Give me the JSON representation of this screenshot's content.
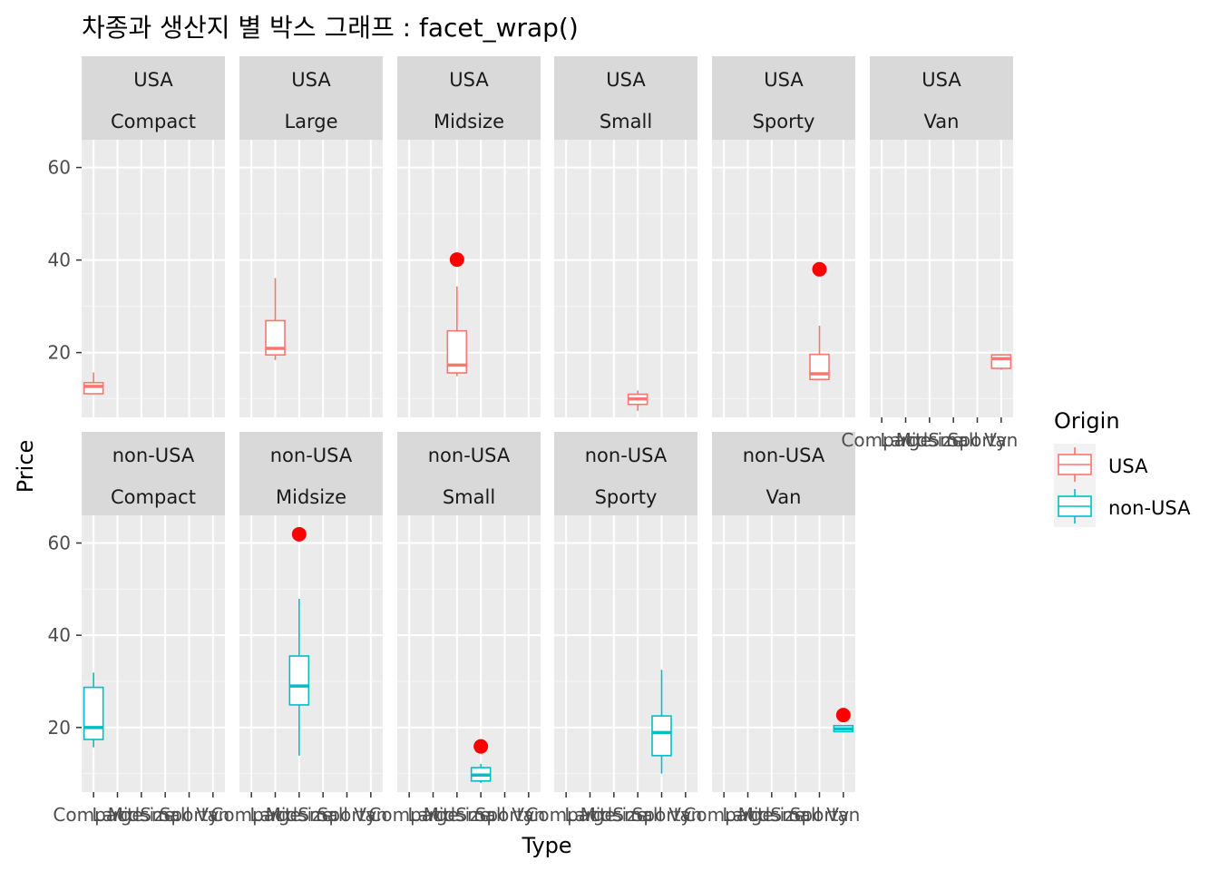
{
  "chart_data": {
    "type": "box",
    "title": "차종과 생산지 별 박스 그래프 : facet_wrap()",
    "xlabel": "Type",
    "ylabel": "Price",
    "y_ticks": [
      20,
      40,
      60
    ],
    "ylim": [
      6,
      66
    ],
    "categories": [
      "Compact",
      "Large",
      "Midsize",
      "Small",
      "Sporty",
      "Van"
    ],
    "legend": {
      "title": "Origin",
      "entries": [
        {
          "name": "USA",
          "color": "#F8766D"
        },
        {
          "name": "non-USA",
          "color": "#00BFC4"
        }
      ]
    },
    "outlier_color": "#FF0000",
    "panels": [
      {
        "origin": "USA",
        "type": "Compact",
        "q1": 11.1,
        "median": 12.7,
        "q3": 13.5,
        "lower": 11.1,
        "upper": 15.7,
        "outliers": []
      },
      {
        "origin": "USA",
        "type": "Large",
        "q1": 19.5,
        "median": 20.9,
        "q3": 26.9,
        "lower": 18.4,
        "upper": 36.1,
        "outliers": []
      },
      {
        "origin": "USA",
        "type": "Midsize",
        "q1": 15.6,
        "median": 17.3,
        "q3": 24.7,
        "lower": 14.9,
        "upper": 34.3,
        "outliers": [
          40.1
        ]
      },
      {
        "origin": "USA",
        "type": "Small",
        "q1": 8.8,
        "median": 10.0,
        "q3": 11.0,
        "lower": 7.4,
        "upper": 11.8,
        "outliers": []
      },
      {
        "origin": "USA",
        "type": "Sporty",
        "q1": 14.2,
        "median": 15.4,
        "q3": 19.6,
        "lower": 14.0,
        "upper": 25.8,
        "outliers": [
          38.0
        ]
      },
      {
        "origin": "USA",
        "type": "Van",
        "q1": 16.6,
        "median": 18.7,
        "q3": 19.5,
        "lower": 16.3,
        "upper": 19.5,
        "outliers": []
      },
      {
        "origin": "non-USA",
        "type": "Compact",
        "q1": 17.4,
        "median": 20.0,
        "q3": 28.7,
        "lower": 15.7,
        "upper": 31.9,
        "outliers": []
      },
      {
        "origin": "non-USA",
        "type": "Midsize",
        "q1": 24.9,
        "median": 29.0,
        "q3": 35.5,
        "lower": 13.9,
        "upper": 47.9,
        "outliers": [
          61.9
        ]
      },
      {
        "origin": "non-USA",
        "type": "Small",
        "q1": 8.4,
        "median": 9.7,
        "q3": 11.3,
        "lower": 8.0,
        "upper": 12.1,
        "outliers": [
          15.9
        ]
      },
      {
        "origin": "non-USA",
        "type": "Sporty",
        "q1": 13.9,
        "median": 18.9,
        "q3": 22.5,
        "lower": 10.0,
        "upper": 32.5,
        "outliers": []
      },
      {
        "origin": "non-USA",
        "type": "Van",
        "q1": 19.1,
        "median": 19.7,
        "q3": 20.4,
        "lower": 19.1,
        "upper": 20.4,
        "outliers": [
          22.7
        ]
      }
    ]
  }
}
